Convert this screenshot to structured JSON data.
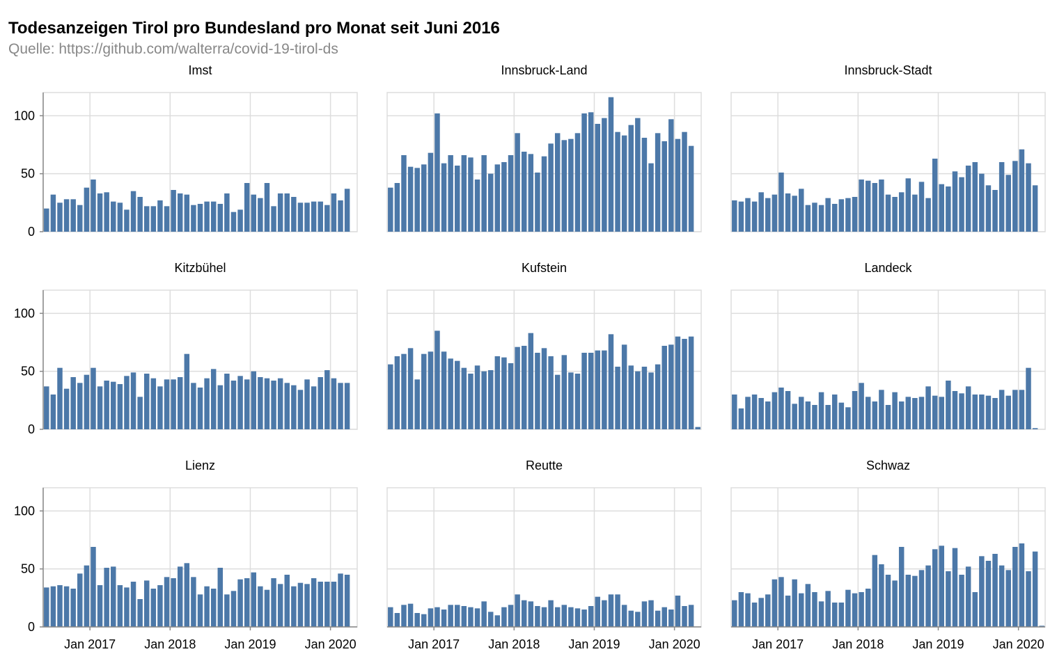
{
  "chart_data": {
    "type": "bar",
    "title": "Todesanzeigen Tirol pro Bundesland pro Monat seit Juni 2016",
    "subtitle": "Quelle: https://github.com/walterra/covid-19-tirol-ds",
    "color": "#4c78a8",
    "grid": true,
    "ylim": [
      0,
      120
    ],
    "yticks": [
      0,
      50,
      100
    ],
    "xticks": [
      "Jan 2017",
      "Jan 2018",
      "Jan 2019",
      "Jan 2020"
    ],
    "x": [
      "2016-06",
      "2016-07",
      "2016-08",
      "2016-09",
      "2016-10",
      "2016-11",
      "2016-12",
      "2017-01",
      "2017-02",
      "2017-03",
      "2017-04",
      "2017-05",
      "2017-06",
      "2017-07",
      "2017-08",
      "2017-09",
      "2017-10",
      "2017-11",
      "2017-12",
      "2018-01",
      "2018-02",
      "2018-03",
      "2018-04",
      "2018-05",
      "2018-06",
      "2018-07",
      "2018-08",
      "2018-09",
      "2018-10",
      "2018-11",
      "2018-12",
      "2019-01",
      "2019-02",
      "2019-03",
      "2019-04",
      "2019-05",
      "2019-06",
      "2019-07",
      "2019-08",
      "2019-09",
      "2019-10",
      "2019-11",
      "2019-12",
      "2020-01",
      "2020-02",
      "2020-03",
      "2020-04"
    ],
    "series": [
      {
        "name": "Imst",
        "values": [
          20,
          32,
          25,
          28,
          28,
          23,
          38,
          45,
          33,
          34,
          26,
          25,
          19,
          35,
          30,
          22,
          22,
          27,
          22,
          36,
          33,
          32,
          23,
          24,
          26,
          26,
          24,
          33,
          17,
          19,
          42,
          32,
          29,
          42,
          22,
          33,
          33,
          30,
          25,
          25,
          26,
          26,
          23,
          33,
          27,
          37,
          null
        ]
      },
      {
        "name": "Innsbruck-Land",
        "values": [
          38,
          42,
          66,
          56,
          55,
          58,
          68,
          102,
          59,
          66,
          57,
          66,
          64,
          45,
          66,
          50,
          58,
          60,
          66,
          85,
          69,
          67,
          51,
          65,
          76,
          85,
          79,
          80,
          85,
          102,
          103,
          93,
          98,
          116,
          86,
          83,
          92,
          98,
          81,
          59,
          85,
          78,
          97,
          80,
          86,
          74,
          null
        ]
      },
      {
        "name": "Innsbruck-Stadt",
        "values": [
          27,
          26,
          29,
          26,
          34,
          29,
          32,
          51,
          33,
          31,
          37,
          23,
          25,
          23,
          29,
          24,
          28,
          29,
          30,
          45,
          44,
          42,
          45,
          32,
          30,
          34,
          46,
          32,
          43,
          29,
          63,
          41,
          39,
          52,
          47,
          57,
          60,
          50,
          40,
          36,
          60,
          49,
          61,
          71,
          59,
          40,
          null
        ]
      },
      {
        "name": "Kitzbühel",
        "values": [
          37,
          30,
          53,
          35,
          45,
          40,
          47,
          53,
          37,
          42,
          41,
          39,
          46,
          49,
          28,
          48,
          44,
          37,
          43,
          43,
          45,
          65,
          40,
          36,
          44,
          52,
          38,
          48,
          42,
          46,
          43,
          50,
          45,
          44,
          42,
          44,
          40,
          38,
          34,
          43,
          37,
          45,
          51,
          44,
          40,
          40,
          null
        ]
      },
      {
        "name": "Kufstein",
        "values": [
          56,
          63,
          65,
          70,
          43,
          65,
          67,
          85,
          67,
          61,
          59,
          53,
          48,
          55,
          50,
          51,
          63,
          62,
          57,
          71,
          72,
          83,
          66,
          70,
          63,
          47,
          64,
          49,
          48,
          66,
          66,
          68,
          68,
          82,
          54,
          73,
          55,
          50,
          54,
          49,
          56,
          72,
          73,
          80,
          78,
          80,
          2
        ]
      },
      {
        "name": "Landeck",
        "values": [
          30,
          18,
          28,
          30,
          27,
          24,
          32,
          36,
          33,
          22,
          28,
          24,
          21,
          32,
          21,
          30,
          23,
          19,
          33,
          40,
          28,
          24,
          34,
          21,
          32,
          24,
          28,
          27,
          28,
          37,
          29,
          28,
          42,
          33,
          31,
          37,
          30,
          30,
          29,
          27,
          34,
          29,
          34,
          34,
          53,
          1,
          null
        ]
      },
      {
        "name": "Lienz",
        "values": [
          34,
          35,
          36,
          35,
          33,
          46,
          53,
          69,
          36,
          51,
          52,
          36,
          34,
          39,
          24,
          40,
          33,
          36,
          43,
          42,
          52,
          55,
          43,
          28,
          35,
          33,
          51,
          28,
          31,
          41,
          42,
          47,
          35,
          32,
          42,
          37,
          45,
          35,
          38,
          37,
          42,
          39,
          39,
          39,
          46,
          45,
          null
        ]
      },
      {
        "name": "Reutte",
        "values": [
          17,
          12,
          19,
          20,
          12,
          11,
          16,
          17,
          15,
          19,
          19,
          18,
          17,
          16,
          22,
          13,
          10,
          17,
          19,
          28,
          23,
          22,
          18,
          17,
          23,
          17,
          19,
          17,
          16,
          15,
          18,
          26,
          23,
          28,
          28,
          19,
          14,
          13,
          22,
          23,
          14,
          17,
          15,
          27,
          18,
          19,
          null
        ]
      },
      {
        "name": "Schwaz",
        "values": [
          23,
          30,
          29,
          21,
          25,
          28,
          41,
          43,
          27,
          41,
          29,
          37,
          30,
          22,
          31,
          21,
          21,
          32,
          29,
          30,
          33,
          62,
          54,
          45,
          40,
          69,
          45,
          44,
          49,
          53,
          67,
          70,
          48,
          68,
          45,
          52,
          30,
          61,
          57,
          63,
          53,
          49,
          69,
          72,
          48,
          65,
          1
        ]
      }
    ]
  }
}
